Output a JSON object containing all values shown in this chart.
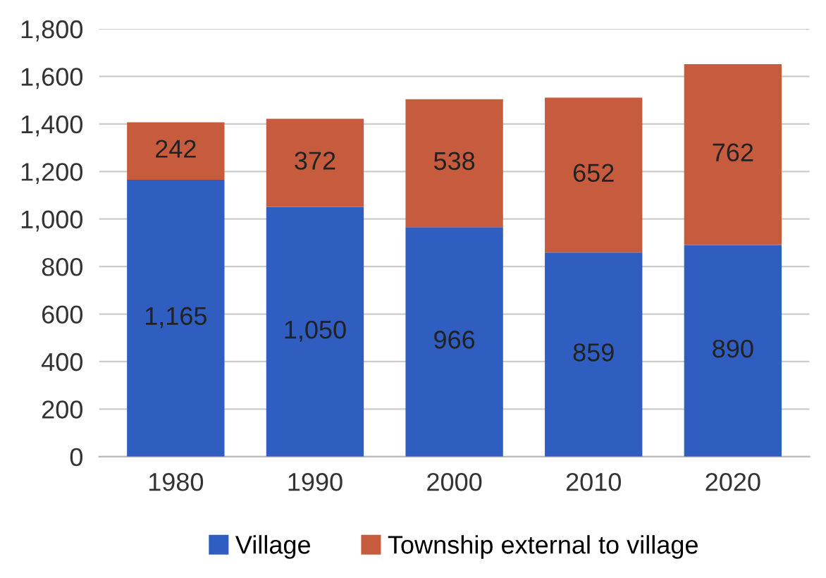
{
  "chart_data": {
    "type": "bar",
    "stacked": true,
    "categories": [
      "1980",
      "1990",
      "2000",
      "2010",
      "2020"
    ],
    "series": [
      {
        "name": "Village",
        "color": "#2f5ec0",
        "values": [
          1165,
          1050,
          966,
          859,
          890
        ],
        "value_labels": [
          "1,165",
          "1,050",
          "966",
          "859",
          "890"
        ]
      },
      {
        "name": "Township external to village",
        "color": "#c65b3e",
        "values": [
          242,
          372,
          538,
          652,
          762
        ],
        "value_labels": [
          "242",
          "372",
          "538",
          "652",
          "762"
        ]
      }
    ],
    "ylim": [
      0,
      1800
    ],
    "yticks": [
      0,
      {
        "value": 200,
        "label": "200"
      },
      {
        "value": 400,
        "label": "400"
      },
      {
        "value": 600,
        "label": "600"
      },
      {
        "value": 800,
        "label": "800"
      },
      {
        "value": 1000,
        "label": "1,000"
      },
      {
        "value": 1200,
        "label": "1,200"
      },
      {
        "value": 1400,
        "label": "1,400"
      },
      {
        "value": 1600,
        "label": "1,600"
      },
      {
        "value": 1800,
        "label": "1,800"
      }
    ],
    "grid": "y",
    "legend": "bottom"
  }
}
